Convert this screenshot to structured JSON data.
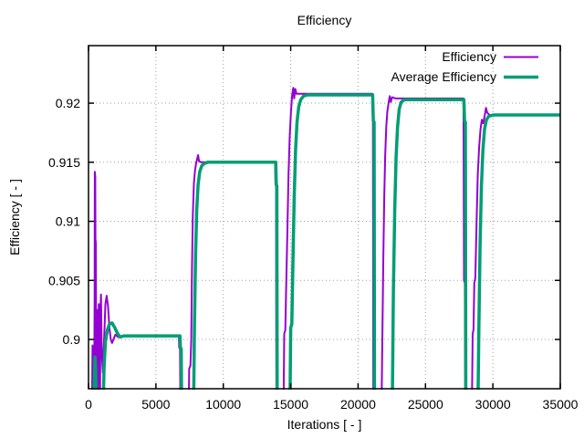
{
  "colors": {
    "background": "#ffffff",
    "border": "#000000",
    "grid": "#9d9d9d",
    "text": "#000000",
    "series_efficiency": "#9400d3",
    "series_average_efficiency": "#009e73"
  },
  "chart_data": {
    "type": "line",
    "title": "Efficiency",
    "xlabel": "Iterations [ - ]",
    "ylabel": "Efficiency [ - ]",
    "xlim": [
      0,
      35000
    ],
    "ylim": [
      0.89583,
      0.92487
    ],
    "xticks": [
      0,
      5000,
      10000,
      15000,
      20000,
      25000,
      30000,
      35000
    ],
    "xtick_labels": [
      "0",
      "5000",
      "10000",
      "15000",
      "20000",
      "25000",
      "30000",
      "35000"
    ],
    "yticks": [
      0.9,
      0.905,
      0.91,
      0.915,
      0.92
    ],
    "ytick_labels": [
      "0.9",
      "0.905",
      "0.91",
      "0.915",
      "0.92"
    ],
    "grid": "dotted",
    "legend_position": "top-right-inside",
    "series": [
      {
        "name": "Efficiency",
        "color": "#9400d3",
        "width": 2,
        "points": [
          [
            260,
            0.894
          ],
          [
            300,
            0.8995
          ],
          [
            340,
            0.8975
          ],
          [
            380,
            0.894
          ],
          [
            420,
            0.894
          ],
          [
            440,
            0.9005
          ],
          [
            455,
            0.9035
          ],
          [
            470,
            0.9142
          ],
          [
            500,
            0.9138
          ],
          [
            515,
            0.9085
          ],
          [
            540,
            0.9082
          ],
          [
            555,
            0.9035
          ],
          [
            575,
            0.894
          ],
          [
            660,
            0.894
          ],
          [
            690,
            0.9025
          ],
          [
            725,
            0.8965
          ],
          [
            760,
            0.903
          ],
          [
            795,
            0.894
          ],
          [
            835,
            0.894
          ],
          [
            860,
            0.896
          ],
          [
            895,
            0.9028
          ],
          [
            930,
            0.9038
          ],
          [
            965,
            0.9
          ],
          [
            1000,
            0.8985
          ],
          [
            1060,
            0.8972
          ],
          [
            1150,
            0.8998
          ],
          [
            1250,
            0.903
          ],
          [
            1350,
            0.9037
          ],
          [
            1450,
            0.9028
          ],
          [
            1550,
            0.901
          ],
          [
            1650,
            0.9
          ],
          [
            1750,
            0.8997
          ],
          [
            1850,
            0.9
          ],
          [
            2000,
            0.9004
          ],
          [
            2200,
            0.9002
          ],
          [
            2500,
            0.9003
          ],
          [
            6700,
            0.9003
          ],
          [
            6730,
            0.8993
          ],
          [
            6790,
            0.8992
          ],
          [
            6820,
            0.894
          ],
          [
            7440,
            0.894
          ],
          [
            7470,
            0.8975
          ],
          [
            7560,
            0.8978
          ],
          [
            7620,
            0.9
          ],
          [
            7680,
            0.906
          ],
          [
            7740,
            0.9105
          ],
          [
            7820,
            0.9132
          ],
          [
            7900,
            0.9143
          ],
          [
            7980,
            0.9149
          ],
          [
            8060,
            0.9153
          ],
          [
            8130,
            0.9156
          ],
          [
            8200,
            0.9151
          ],
          [
            8350,
            0.915
          ],
          [
            13840,
            0.915
          ],
          [
            13870,
            0.9131
          ],
          [
            13910,
            0.913
          ],
          [
            13940,
            0.894
          ],
          [
            14470,
            0.894
          ],
          [
            14520,
            0.9005
          ],
          [
            14600,
            0.9008
          ],
          [
            14660,
            0.904
          ],
          [
            14750,
            0.909
          ],
          [
            14840,
            0.914
          ],
          [
            14930,
            0.9172
          ],
          [
            15020,
            0.9193
          ],
          [
            15110,
            0.9207
          ],
          [
            15190,
            0.9213
          ],
          [
            15260,
            0.9204
          ],
          [
            15340,
            0.9212
          ],
          [
            15430,
            0.9208
          ],
          [
            15700,
            0.9208
          ],
          [
            21060,
            0.9208
          ],
          [
            21100,
            0.9185
          ],
          [
            21130,
            0.894
          ],
          [
            21740,
            0.894
          ],
          [
            21800,
            0.9
          ],
          [
            21870,
            0.907
          ],
          [
            21940,
            0.912
          ],
          [
            22010,
            0.9155
          ],
          [
            22090,
            0.918
          ],
          [
            22170,
            0.9193
          ],
          [
            22260,
            0.92
          ],
          [
            22350,
            0.9206
          ],
          [
            22420,
            0.9201
          ],
          [
            22520,
            0.9205
          ],
          [
            22800,
            0.9204
          ],
          [
            27820,
            0.9204
          ],
          [
            27860,
            0.905
          ],
          [
            27920,
            0.9048
          ],
          [
            27950,
            0.894
          ],
          [
            28440,
            0.894
          ],
          [
            28500,
            0.9005
          ],
          [
            28560,
            0.9008
          ],
          [
            28620,
            0.9048
          ],
          [
            28700,
            0.9052
          ],
          [
            28790,
            0.91
          ],
          [
            28880,
            0.914
          ],
          [
            28980,
            0.9163
          ],
          [
            29080,
            0.9178
          ],
          [
            29180,
            0.9186
          ],
          [
            29280,
            0.9183
          ],
          [
            29400,
            0.919
          ],
          [
            29490,
            0.9196
          ],
          [
            29580,
            0.9192
          ],
          [
            29750,
            0.919
          ],
          [
            35000,
            0.919
          ]
        ]
      },
      {
        "name": "Average Efficiency",
        "color": "#009e73",
        "width": 3.5,
        "points": [
          [
            380,
            0.894
          ],
          [
            430,
            0.8965
          ],
          [
            480,
            0.8985
          ],
          [
            530,
            0.8975
          ],
          [
            580,
            0.894
          ],
          [
            1080,
            0.894
          ],
          [
            1150,
            0.8975
          ],
          [
            1250,
            0.8998
          ],
          [
            1400,
            0.9008
          ],
          [
            1550,
            0.9013
          ],
          [
            1750,
            0.9014
          ],
          [
            1950,
            0.901
          ],
          [
            2150,
            0.9005
          ],
          [
            2350,
            0.9002
          ],
          [
            2600,
            0.9003
          ],
          [
            6780,
            0.9003
          ],
          [
            6820,
            0.8993
          ],
          [
            6880,
            0.8992
          ],
          [
            6910,
            0.894
          ],
          [
            7790,
            0.894
          ],
          [
            7860,
            0.901
          ],
          [
            7940,
            0.907
          ],
          [
            8030,
            0.911
          ],
          [
            8130,
            0.9131
          ],
          [
            8250,
            0.9142
          ],
          [
            8400,
            0.9147
          ],
          [
            8600,
            0.9149
          ],
          [
            8850,
            0.915
          ],
          [
            13890,
            0.915
          ],
          [
            13930,
            0.9131
          ],
          [
            13970,
            0.913
          ],
          [
            14000,
            0.894
          ],
          [
            14940,
            0.894
          ],
          [
            15000,
            0.901
          ],
          [
            15080,
            0.9013
          ],
          [
            15160,
            0.906
          ],
          [
            15260,
            0.912
          ],
          [
            15360,
            0.916
          ],
          [
            15470,
            0.9184
          ],
          [
            15600,
            0.9197
          ],
          [
            15750,
            0.9203
          ],
          [
            15950,
            0.9206
          ],
          [
            16250,
            0.9207
          ],
          [
            21080,
            0.9207
          ],
          [
            21130,
            0.9185
          ],
          [
            21190,
            0.9184
          ],
          [
            21220,
            0.894
          ],
          [
            22540,
            0.894
          ],
          [
            22620,
            0.904
          ],
          [
            22720,
            0.911
          ],
          [
            22820,
            0.9155
          ],
          [
            22930,
            0.918
          ],
          [
            23050,
            0.9195
          ],
          [
            23200,
            0.9201
          ],
          [
            23450,
            0.9203
          ],
          [
            27850,
            0.9203
          ],
          [
            27900,
            0.9185
          ],
          [
            27960,
            0.9184
          ],
          [
            27990,
            0.894
          ],
          [
            28890,
            0.894
          ],
          [
            28960,
            0.901
          ],
          [
            29050,
            0.908
          ],
          [
            29150,
            0.913
          ],
          [
            29260,
            0.916
          ],
          [
            29380,
            0.9178
          ],
          [
            29520,
            0.9186
          ],
          [
            29700,
            0.9189
          ],
          [
            30050,
            0.919
          ],
          [
            35000,
            0.919
          ]
        ]
      }
    ]
  }
}
